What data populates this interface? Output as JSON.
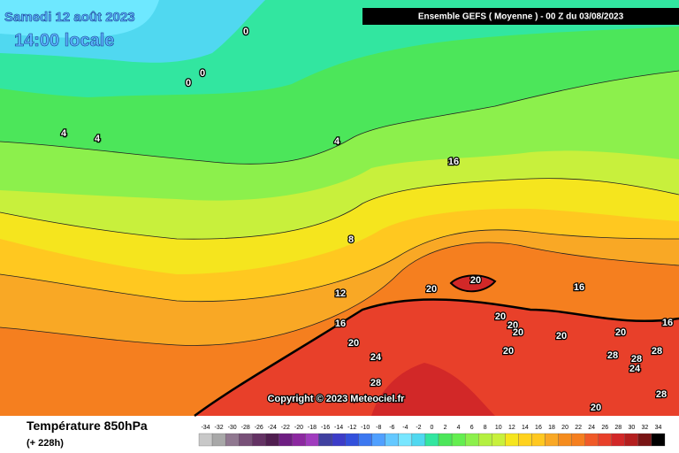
{
  "header": {
    "date": "Samedi 12 août 2023",
    "time": "14:00 locale",
    "run": "Ensemble GEFS  ( Moyenne )  - 00 Z du 03/08/2023"
  },
  "copyright": "Copyright © 2023 Meteociel.fr",
  "footer": {
    "title": "Température 850hPa",
    "lead": "(+ 228h)"
  },
  "contour_labels": [
    0,
    0,
    0,
    4,
    4,
    4,
    8,
    12,
    16,
    20,
    24,
    28,
    20,
    20,
    16,
    20,
    20,
    20,
    20,
    20,
    20,
    16,
    28,
    28,
    28,
    24,
    28,
    20,
    16
  ],
  "legend": {
    "labels": [
      -34,
      -32,
      -30,
      -28,
      -26,
      -24,
      -22,
      -20,
      -18,
      -16,
      -14,
      -12,
      -10,
      -8,
      -6,
      -4,
      -2,
      0,
      2,
      4,
      6,
      8,
      10,
      12,
      14,
      16,
      18,
      20,
      22,
      24,
      26,
      28,
      30,
      32,
      34
    ],
    "colors": [
      "#c8c8c8",
      "#a8a8a8",
      "#907890",
      "#785078",
      "#643264",
      "#501e50",
      "#6e1e82",
      "#8c28a0",
      "#a03cbe",
      "#4040a0",
      "#3c3cc8",
      "#3250dc",
      "#3c78f0",
      "#50a0ff",
      "#64c8ff",
      "#78e6ff",
      "#50d8f0",
      "#32e6a0",
      "#4ce65a",
      "#64ee50",
      "#8cf04c",
      "#b4f040",
      "#c8f03c",
      "#f5e51e",
      "#ffd21e",
      "#ffc820",
      "#f9a825",
      "#f58c1e",
      "#f57f1f",
      "#f05a28",
      "#e8402a",
      "#d22828",
      "#b41e1e",
      "#781414",
      "#000000"
    ]
  }
}
